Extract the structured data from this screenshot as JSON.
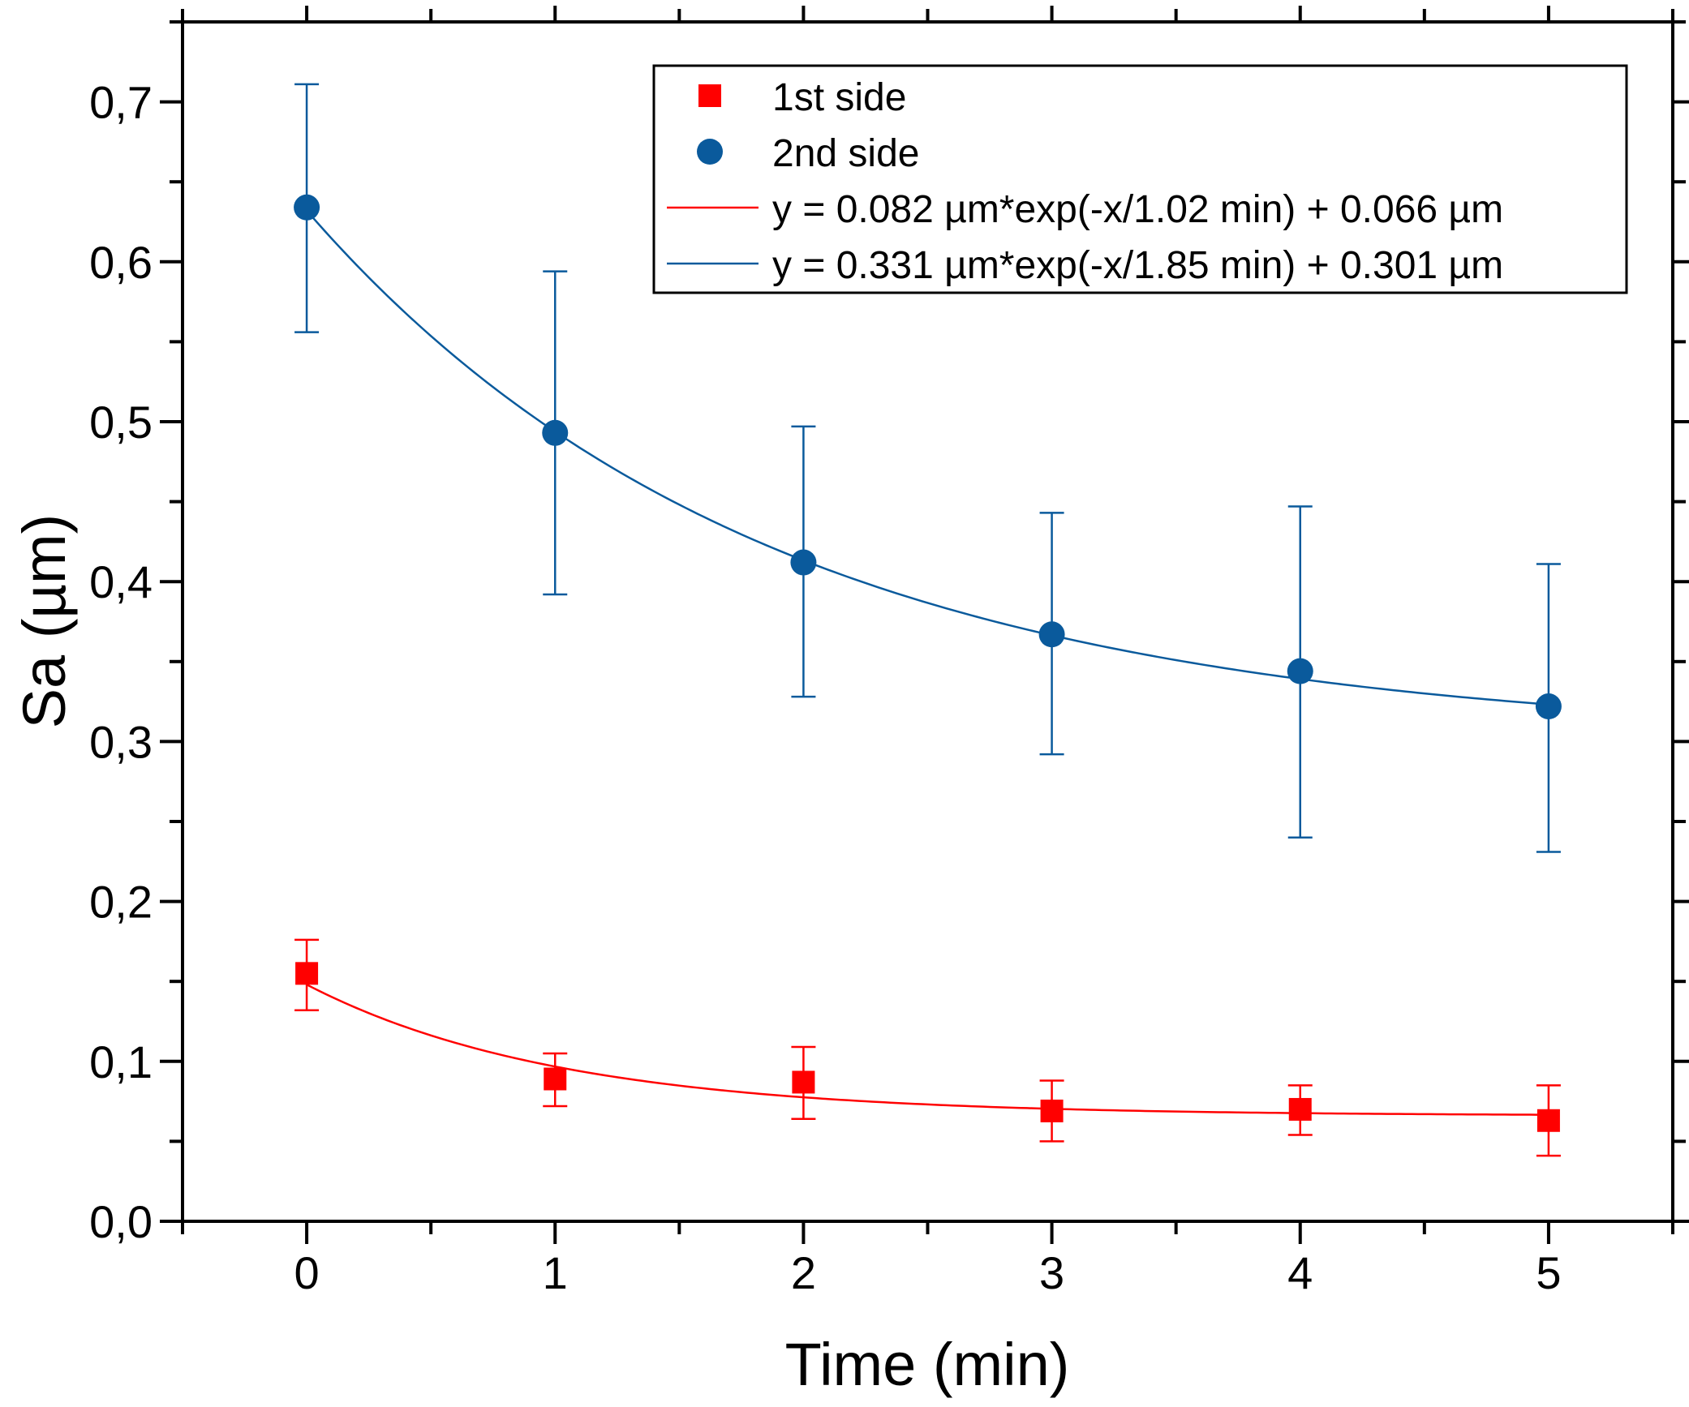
{
  "chart_data": {
    "type": "scatter",
    "title": "",
    "xlabel": "Time (min)",
    "ylabel": "Sa (µm)",
    "xlim": [
      -0.5,
      5.5
    ],
    "ylim": [
      0.0,
      0.75
    ],
    "xticks": [
      0,
      1,
      2,
      3,
      4,
      5
    ],
    "xtick_labels": [
      "0",
      "1",
      "2",
      "3",
      "4",
      "5"
    ],
    "yticks": [
      0.0,
      0.1,
      0.2,
      0.3,
      0.4,
      0.5,
      0.6,
      0.7
    ],
    "ytick_labels": [
      "0,0",
      "0,1",
      "0,2",
      "0,3",
      "0,4",
      "0,5",
      "0,6",
      "0,7"
    ],
    "grid": false,
    "legend_position": "top-right",
    "series": [
      {
        "name": "1st side",
        "marker": "square",
        "color": "#ff0000",
        "x": [
          0,
          1,
          2,
          3,
          4,
          5
        ],
        "y": [
          0.155,
          0.089,
          0.087,
          0.069,
          0.07,
          0.063
        ],
        "err_low": [
          0.132,
          0.072,
          0.064,
          0.05,
          0.054,
          0.041
        ],
        "err_high": [
          0.176,
          0.105,
          0.109,
          0.088,
          0.085,
          0.085
        ]
      },
      {
        "name": "2nd side",
        "marker": "circle",
        "color": "#0a5a9c",
        "x": [
          0,
          1,
          2,
          3,
          4,
          5
        ],
        "y": [
          0.634,
          0.493,
          0.412,
          0.367,
          0.344,
          0.322
        ],
        "err_low": [
          0.556,
          0.392,
          0.328,
          0.292,
          0.24,
          0.231
        ],
        "err_high": [
          0.711,
          0.594,
          0.497,
          0.443,
          0.447,
          0.411
        ]
      }
    ],
    "fits": [
      {
        "label": "y = 0.082 µm*exp(-x/1.02 min) + 0.066 µm",
        "color": "#ff0000",
        "A": 0.082,
        "t": 1.02,
        "y0": 0.066,
        "x_range": [
          0,
          5
        ]
      },
      {
        "label": "y = 0.331 µm*exp(-x/1.85 min) + 0.301 µm",
        "color": "#0a5a9c",
        "A": 0.331,
        "t": 1.85,
        "y0": 0.301,
        "x_range": [
          0,
          5
        ]
      }
    ]
  }
}
